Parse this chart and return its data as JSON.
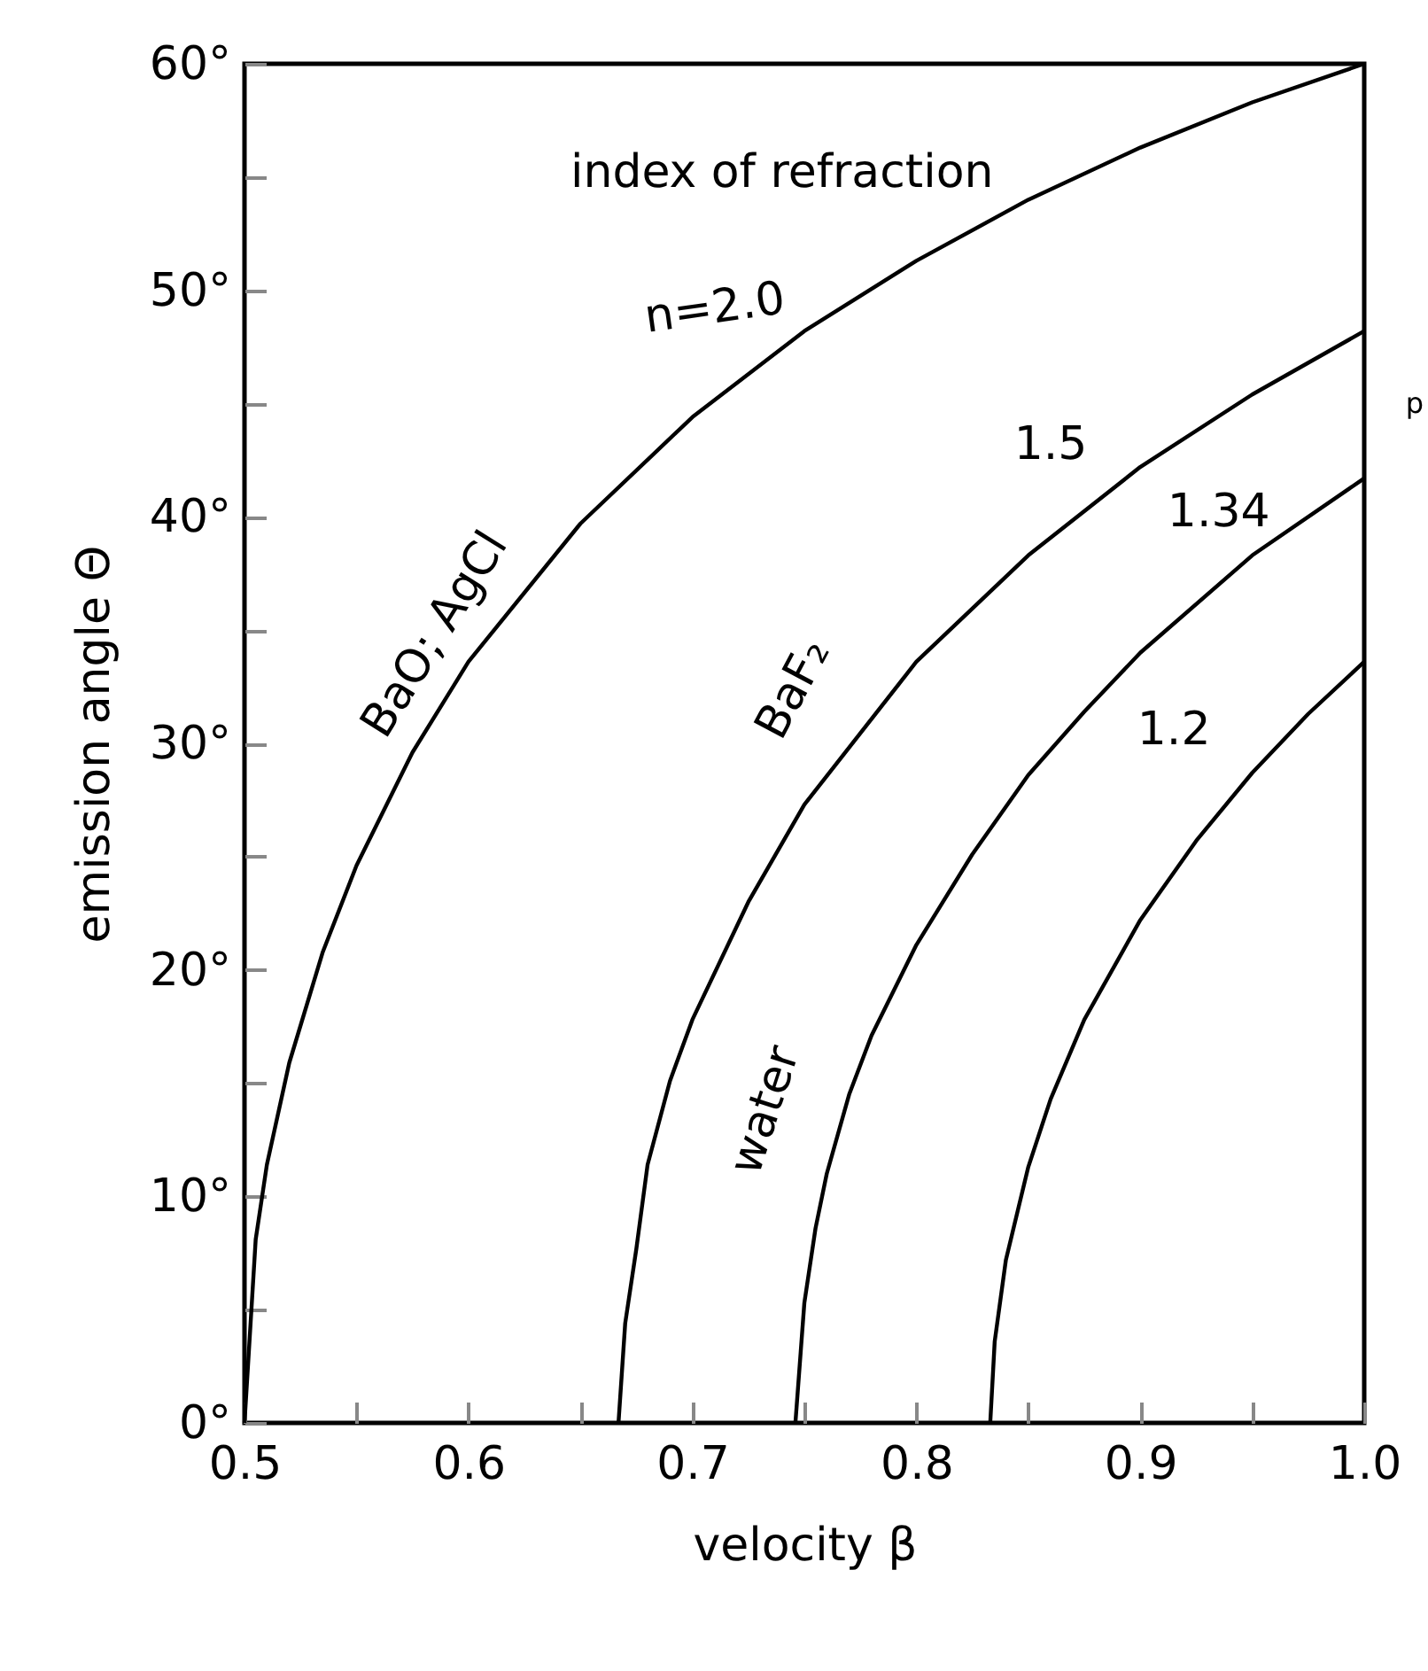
{
  "chart_data": {
    "type": "line",
    "xlabel": "velocity β",
    "ylabel": "emission angle Θ",
    "xlim": [
      0.5,
      1.0
    ],
    "ylim": [
      0,
      60
    ],
    "xticks": [
      0.5,
      {
        "value": 0.55,
        "label": null
      },
      0.6,
      {
        "value": 0.65,
        "label": null
      },
      0.7,
      {
        "value": 0.75,
        "label": null
      },
      0.8,
      {
        "value": 0.85,
        "label": null
      },
      0.9,
      {
        "value": 0.95,
        "label": null
      },
      {
        "value": 1.0,
        "label": "1.0"
      }
    ],
    "yticks": [
      {
        "value": 0,
        "label": "0°"
      },
      {
        "value": 5,
        "label": null
      },
      {
        "value": 10,
        "label": "10°"
      },
      {
        "value": 15,
        "label": null
      },
      {
        "value": 20,
        "label": "20°"
      },
      {
        "value": 25,
        "label": null
      },
      {
        "value": 30,
        "label": "30°"
      },
      {
        "value": 35,
        "label": null
      },
      {
        "value": 40,
        "label": "40°"
      },
      {
        "value": 45,
        "label": null
      },
      {
        "value": 50,
        "label": "50°"
      },
      {
        "value": 55,
        "label": null
      },
      {
        "value": 60,
        "label": "60°"
      }
    ],
    "grid": false,
    "marker": "none",
    "line_style": "solid",
    "series": [
      {
        "color": "#000000",
        "x": [
          0.5,
          0.505,
          0.51,
          0.52,
          0.535,
          0.55,
          0.575,
          0.6,
          0.65,
          0.7,
          0.75,
          0.8,
          0.85,
          0.9,
          0.95,
          1.0
        ],
        "values": [
          0,
          8.1,
          11.4,
          15.9,
          20.8,
          24.6,
          29.6,
          33.6,
          39.7,
          44.4,
          48.2,
          51.3,
          54.0,
          56.3,
          58.3,
          60
        ]
      },
      {
        "color": "#000000",
        "x": [
          0.667,
          0.67,
          0.675,
          0.68,
          0.69,
          0.7,
          0.725,
          0.75,
          0.8,
          0.85,
          0.9,
          0.95,
          1.0
        ],
        "values": [
          0,
          4.4,
          7.7,
          11.4,
          15.1,
          17.8,
          23.0,
          27.3,
          33.6,
          38.3,
          42.2,
          45.4,
          48.2
        ]
      },
      {
        "color": "#000000",
        "x": [
          0.746,
          0.75,
          0.755,
          0.76,
          0.77,
          0.78,
          0.8,
          0.825,
          0.85,
          0.875,
          0.9,
          0.95,
          1.0
        ],
        "values": [
          0,
          5.3,
          8.6,
          11.0,
          14.5,
          17.1,
          21.1,
          25.1,
          28.6,
          31.4,
          34.0,
          38.3,
          41.7
        ]
      },
      {
        "color": "#000000",
        "x": [
          0.833,
          0.835,
          0.84,
          0.85,
          0.86,
          0.875,
          0.9,
          0.925,
          0.95,
          0.975,
          1.0
        ],
        "values": [
          0,
          3.6,
          7.2,
          11.3,
          14.3,
          17.8,
          22.2,
          25.7,
          28.7,
          31.3,
          33.6
        ]
      }
    ],
    "annotations": [
      "index of refraction",
      "n=2.0",
      "BaO; AgCl",
      "1.5",
      "BaF₂",
      "1.34",
      "water",
      "1.2",
      "p"
    ]
  }
}
